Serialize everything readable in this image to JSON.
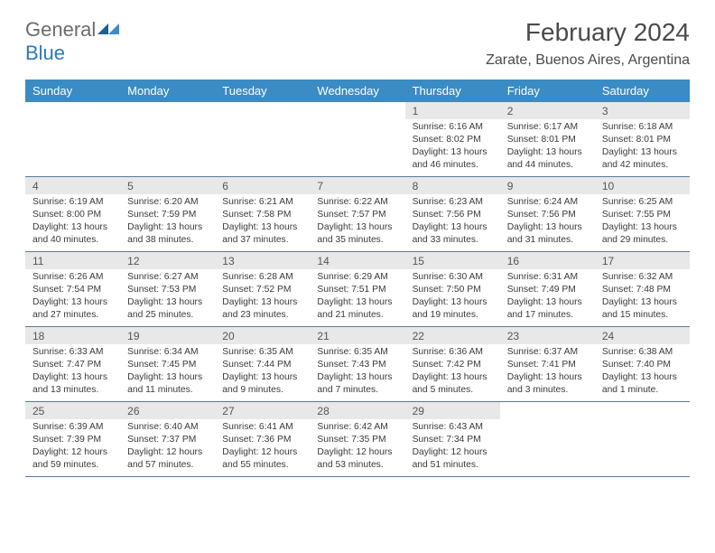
{
  "logo": {
    "line1": "General",
    "line2": "Blue"
  },
  "title": "February 2024",
  "location": "Zarate, Buenos Aires, Argentina",
  "colors": {
    "header_bg": "#3b8bc4",
    "header_text": "#ffffff",
    "daynum_bg": "#e8e8e8",
    "border": "#5a7a9a",
    "text": "#3a3a3a",
    "logo_gray": "#6b6b6b",
    "logo_blue": "#2a7ab8"
  },
  "fonts": {
    "title_size": 28,
    "location_size": 16,
    "header_size": 13,
    "daynum_size": 12,
    "content_size": 10.3
  },
  "weekdays": [
    "Sunday",
    "Monday",
    "Tuesday",
    "Wednesday",
    "Thursday",
    "Friday",
    "Saturday"
  ],
  "weeks": [
    [
      null,
      null,
      null,
      null,
      {
        "n": "1",
        "sunrise": "6:16 AM",
        "sunset": "8:02 PM",
        "dl": "13 hours and 46 minutes."
      },
      {
        "n": "2",
        "sunrise": "6:17 AM",
        "sunset": "8:01 PM",
        "dl": "13 hours and 44 minutes."
      },
      {
        "n": "3",
        "sunrise": "6:18 AM",
        "sunset": "8:01 PM",
        "dl": "13 hours and 42 minutes."
      }
    ],
    [
      {
        "n": "4",
        "sunrise": "6:19 AM",
        "sunset": "8:00 PM",
        "dl": "13 hours and 40 minutes."
      },
      {
        "n": "5",
        "sunrise": "6:20 AM",
        "sunset": "7:59 PM",
        "dl": "13 hours and 38 minutes."
      },
      {
        "n": "6",
        "sunrise": "6:21 AM",
        "sunset": "7:58 PM",
        "dl": "13 hours and 37 minutes."
      },
      {
        "n": "7",
        "sunrise": "6:22 AM",
        "sunset": "7:57 PM",
        "dl": "13 hours and 35 minutes."
      },
      {
        "n": "8",
        "sunrise": "6:23 AM",
        "sunset": "7:56 PM",
        "dl": "13 hours and 33 minutes."
      },
      {
        "n": "9",
        "sunrise": "6:24 AM",
        "sunset": "7:56 PM",
        "dl": "13 hours and 31 minutes."
      },
      {
        "n": "10",
        "sunrise": "6:25 AM",
        "sunset": "7:55 PM",
        "dl": "13 hours and 29 minutes."
      }
    ],
    [
      {
        "n": "11",
        "sunrise": "6:26 AM",
        "sunset": "7:54 PM",
        "dl": "13 hours and 27 minutes."
      },
      {
        "n": "12",
        "sunrise": "6:27 AM",
        "sunset": "7:53 PM",
        "dl": "13 hours and 25 minutes."
      },
      {
        "n": "13",
        "sunrise": "6:28 AM",
        "sunset": "7:52 PM",
        "dl": "13 hours and 23 minutes."
      },
      {
        "n": "14",
        "sunrise": "6:29 AM",
        "sunset": "7:51 PM",
        "dl": "13 hours and 21 minutes."
      },
      {
        "n": "15",
        "sunrise": "6:30 AM",
        "sunset": "7:50 PM",
        "dl": "13 hours and 19 minutes."
      },
      {
        "n": "16",
        "sunrise": "6:31 AM",
        "sunset": "7:49 PM",
        "dl": "13 hours and 17 minutes."
      },
      {
        "n": "17",
        "sunrise": "6:32 AM",
        "sunset": "7:48 PM",
        "dl": "13 hours and 15 minutes."
      }
    ],
    [
      {
        "n": "18",
        "sunrise": "6:33 AM",
        "sunset": "7:47 PM",
        "dl": "13 hours and 13 minutes."
      },
      {
        "n": "19",
        "sunrise": "6:34 AM",
        "sunset": "7:45 PM",
        "dl": "13 hours and 11 minutes."
      },
      {
        "n": "20",
        "sunrise": "6:35 AM",
        "sunset": "7:44 PM",
        "dl": "13 hours and 9 minutes."
      },
      {
        "n": "21",
        "sunrise": "6:35 AM",
        "sunset": "7:43 PM",
        "dl": "13 hours and 7 minutes."
      },
      {
        "n": "22",
        "sunrise": "6:36 AM",
        "sunset": "7:42 PM",
        "dl": "13 hours and 5 minutes."
      },
      {
        "n": "23",
        "sunrise": "6:37 AM",
        "sunset": "7:41 PM",
        "dl": "13 hours and 3 minutes."
      },
      {
        "n": "24",
        "sunrise": "6:38 AM",
        "sunset": "7:40 PM",
        "dl": "13 hours and 1 minute."
      }
    ],
    [
      {
        "n": "25",
        "sunrise": "6:39 AM",
        "sunset": "7:39 PM",
        "dl": "12 hours and 59 minutes."
      },
      {
        "n": "26",
        "sunrise": "6:40 AM",
        "sunset": "7:37 PM",
        "dl": "12 hours and 57 minutes."
      },
      {
        "n": "27",
        "sunrise": "6:41 AM",
        "sunset": "7:36 PM",
        "dl": "12 hours and 55 minutes."
      },
      {
        "n": "28",
        "sunrise": "6:42 AM",
        "sunset": "7:35 PM",
        "dl": "12 hours and 53 minutes."
      },
      {
        "n": "29",
        "sunrise": "6:43 AM",
        "sunset": "7:34 PM",
        "dl": "12 hours and 51 minutes."
      },
      null,
      null
    ]
  ]
}
